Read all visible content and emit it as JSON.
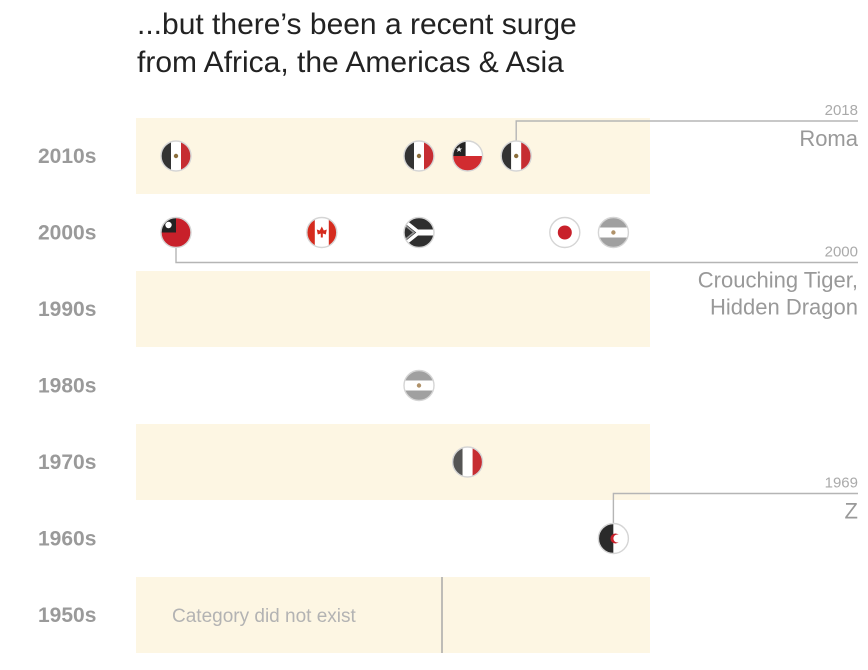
{
  "title": {
    "line1": "...but there’s been a recent surge",
    "line2": "from Africa, the Americas & Asia"
  },
  "chart_data": {
    "type": "scatter",
    "title": "...but there’s been a recent surge from Africa, the Americas & Asia",
    "rows": [
      "2010s",
      "2000s",
      "1990s",
      "1980s",
      "1970s",
      "1960s",
      "1950s"
    ],
    "shaded_rows": [
      "2010s",
      "1990s",
      "1970s",
      "1950s"
    ],
    "points": [
      {
        "decade": "2010s",
        "flag": "mexico-flag-icon",
        "order": 0
      },
      {
        "decade": "2010s",
        "flag": "mexico-flag-icon",
        "order": 5
      },
      {
        "decade": "2010s",
        "flag": "chile-flag-icon",
        "order": 6
      },
      {
        "decade": "2010s",
        "flag": "mexico-flag-icon",
        "order": 7
      },
      {
        "decade": "2000s",
        "flag": "taiwan-flag-icon",
        "order": 0
      },
      {
        "decade": "2000s",
        "flag": "canada-flag-icon",
        "order": 3
      },
      {
        "decade": "2000s",
        "flag": "south-africa-flag-icon",
        "order": 5
      },
      {
        "decade": "2000s",
        "flag": "japan-flag-icon",
        "order": 8
      },
      {
        "decade": "2000s",
        "flag": "argentina-flag-icon",
        "order": 9
      },
      {
        "decade": "1980s",
        "flag": "argentina-flag-icon",
        "order": 5
      },
      {
        "decade": "1970s",
        "flag": "italy-flag-icon",
        "order": 6
      },
      {
        "decade": "1960s",
        "flag": "algeria-flag-icon",
        "order": 9
      }
    ],
    "annotations": [
      {
        "year": "2018",
        "lines": [
          "Roma"
        ],
        "decade": "2010s",
        "order": 7
      },
      {
        "year": "2000",
        "lines": [
          "Crouching Tiger,",
          "Hidden Dragon"
        ],
        "decade": "2000s",
        "order": 0
      },
      {
        "year": "1969",
        "lines": [
          "Z"
        ],
        "decade": "1960s",
        "order": 9
      }
    ],
    "not_available": {
      "decade": "1950s",
      "text": "Category did not exist"
    },
    "colors": {
      "band": "#fdf6e3",
      "row_label": "#9a9a9a",
      "annotation": "#999999",
      "leader_line": "#b5b5b5"
    }
  }
}
